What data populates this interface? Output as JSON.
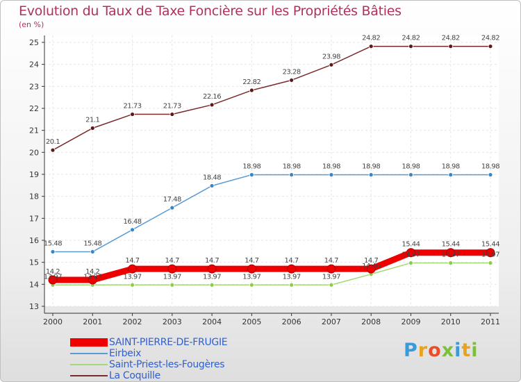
{
  "title": "Evolution du Taux de Taxe Foncière sur les Propriétés Bâties",
  "unit_label": "(en %)",
  "logo": {
    "text": "Proxiti",
    "colors": [
      "#3a9bd9",
      "#e8a21b",
      "#e94e2a",
      "#7cbf3b"
    ]
  },
  "chart_data": {
    "type": "line",
    "title": "Evolution du Taux de Taxe Foncière sur les Propriétés Bâties",
    "ylabel": "(en %)",
    "xlabel": "",
    "x": [
      "2000",
      "2001",
      "2002",
      "2003",
      "2004",
      "2005",
      "2006",
      "2007",
      "2008",
      "2009",
      "2010",
      "2011"
    ],
    "ylim": [
      13,
      25
    ],
    "yticks": [
      "13",
      "14",
      "15",
      "16",
      "17",
      "18",
      "19",
      "20",
      "21",
      "22",
      "23",
      "24",
      "25"
    ],
    "grid": true,
    "legend_position": "bottom-left",
    "series": [
      {
        "name": "SAINT-PIERRE-DE-FRUGIE",
        "color": "#ee0000",
        "values": [
          14.2,
          14.2,
          14.7,
          14.7,
          14.7,
          14.7,
          14.7,
          14.7,
          14.7,
          15.44,
          15.44,
          15.44
        ],
        "labels": [
          "14.2",
          "14.2",
          "14.7",
          "14.7",
          "14.7",
          "14.7",
          "14.7",
          "14.7",
          "14.7",
          "15.44",
          "15.44",
          "15.44"
        ]
      },
      {
        "name": "Eirbeix",
        "color": "#5b9bd5",
        "values": [
          15.48,
          15.48,
          16.48,
          17.48,
          18.48,
          18.98,
          18.98,
          18.98,
          18.98,
          18.98,
          18.98,
          18.98
        ],
        "labels": [
          "15.48",
          "15.48",
          "16.48",
          "17.48",
          "18.48",
          "18.98",
          "18.98",
          "18.98",
          "18.98",
          "18.98",
          "18.98",
          "18.98"
        ]
      },
      {
        "name": "Saint-Priest-les-Fougères",
        "color": "#a3d977",
        "values": [
          13.97,
          13.97,
          13.97,
          13.97,
          13.97,
          13.97,
          13.97,
          13.97,
          14.46,
          14.97,
          14.97,
          14.97
        ],
        "labels": [
          "13.97",
          "13.97",
          "13.97",
          "13.97",
          "13.97",
          "13.97",
          "13.97",
          "13.97",
          "14.46",
          "14.97",
          "14.97",
          "14.97"
        ]
      },
      {
        "name": "La Coquille",
        "color": "#7a2a2a",
        "values": [
          20.1,
          21.1,
          21.73,
          21.73,
          22.16,
          22.82,
          23.28,
          23.98,
          24.82,
          24.82,
          24.82,
          24.82
        ],
        "labels": [
          "20.1",
          "21.1",
          "21.73",
          "21.73",
          "22.16",
          "22.82",
          "23.28",
          "23.98",
          "24.82",
          "24.82",
          "24.82",
          "24.82"
        ]
      }
    ]
  }
}
